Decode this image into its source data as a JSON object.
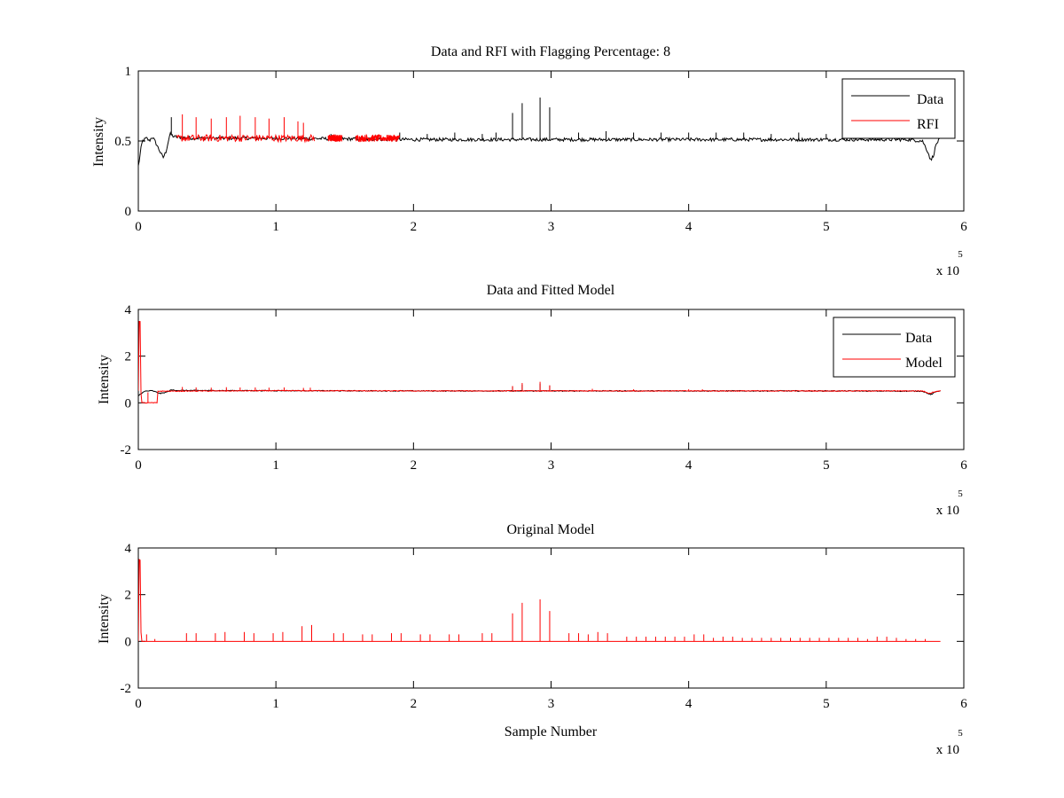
{
  "colors": {
    "data": "#000000",
    "rfi": "#ff0000",
    "background": "#ffffff",
    "axes": "#000000"
  },
  "chart_data": [
    {
      "type": "line",
      "title": "Data and RFI with Flagging Percentage: 8",
      "xlabel": "",
      "ylabel": "Intensity",
      "xlim": [
        0,
        6
      ],
      "ylim": [
        0,
        1
      ],
      "xticks": [
        "0",
        "1",
        "2",
        "3",
        "4",
        "5",
        "6"
      ],
      "yticks": [
        "0",
        "0.5",
        "1"
      ],
      "x_multiplier": {
        "base": "x 10",
        "exponent": "5"
      },
      "legend": {
        "position": "top-right",
        "entries": [
          "Data",
          "RFI"
        ]
      },
      "series": [
        {
          "name": "Data",
          "color": "#000000",
          "baseline": [
            [
              0,
              0.32
            ],
            [
              0.01,
              0.38
            ],
            [
              0.02,
              0.45
            ],
            [
              0.03,
              0.5
            ],
            [
              0.06,
              0.52
            ],
            [
              0.08,
              0.5
            ],
            [
              0.1,
              0.53
            ],
            [
              0.12,
              0.5
            ],
            [
              0.16,
              0.42
            ],
            [
              0.18,
              0.38
            ],
            [
              0.2,
              0.42
            ],
            [
              0.23,
              0.55
            ],
            [
              0.26,
              0.53
            ],
            [
              0.4,
              0.52
            ],
            [
              1.0,
              0.52
            ],
            [
              2.0,
              0.51
            ],
            [
              3.0,
              0.51
            ],
            [
              4.0,
              0.51
            ],
            [
              5.0,
              0.51
            ],
            [
              5.6,
              0.51
            ],
            [
              5.7,
              0.5
            ],
            [
              5.74,
              0.42
            ],
            [
              5.76,
              0.36
            ],
            [
              5.78,
              0.4
            ],
            [
              5.8,
              0.48
            ],
            [
              5.83,
              0.52
            ]
          ],
          "spikes": [
            [
              0.24,
              0.67
            ],
            [
              1.4,
              0.55
            ],
            [
              1.9,
              0.56
            ],
            [
              2.1,
              0.55
            ],
            [
              2.3,
              0.56
            ],
            [
              2.5,
              0.55
            ],
            [
              2.6,
              0.56
            ],
            [
              2.72,
              0.7
            ],
            [
              2.79,
              0.77
            ],
            [
              2.92,
              0.81
            ],
            [
              2.99,
              0.74
            ],
            [
              3.2,
              0.56
            ],
            [
              3.4,
              0.57
            ],
            [
              3.6,
              0.56
            ],
            [
              3.8,
              0.56
            ],
            [
              4.0,
              0.56
            ],
            [
              4.2,
              0.56
            ],
            [
              4.4,
              0.56
            ],
            [
              4.6,
              0.55
            ],
            [
              4.8,
              0.56
            ],
            [
              5.0,
              0.55
            ],
            [
              5.2,
              0.55
            ],
            [
              5.4,
              0.55
            ]
          ]
        },
        {
          "name": "RFI",
          "color": "#ff0000",
          "regions": [
            [
              0.28,
              1.28
            ],
            [
              1.38,
              1.48
            ],
            [
              1.58,
              1.9
            ]
          ],
          "spikes": [
            [
              0.32,
              0.69
            ],
            [
              0.42,
              0.67
            ],
            [
              0.53,
              0.66
            ],
            [
              0.64,
              0.67
            ],
            [
              0.74,
              0.68
            ],
            [
              0.85,
              0.67
            ],
            [
              0.95,
              0.66
            ],
            [
              1.06,
              0.67
            ],
            [
              1.16,
              0.64
            ],
            [
              1.2,
              0.63
            ]
          ]
        }
      ]
    },
    {
      "type": "line",
      "title": "Data and Fitted Model",
      "xlabel": "",
      "ylabel": "Intensity",
      "xlim": [
        0,
        6
      ],
      "ylim": [
        -2,
        4
      ],
      "xticks": [
        "0",
        "1",
        "2",
        "3",
        "4",
        "5",
        "6"
      ],
      "yticks": [
        "-2",
        "0",
        "2",
        "4"
      ],
      "x_multiplier": {
        "base": "x 10",
        "exponent": "5"
      },
      "legend": {
        "position": "top-right",
        "entries": [
          "Data",
          "Model"
        ]
      },
      "series": [
        {
          "name": "Data",
          "color": "#000000",
          "baseline": [
            [
              0,
              0.3
            ],
            [
              0.02,
              0.4
            ],
            [
              0.05,
              0.5
            ],
            [
              0.1,
              0.52
            ],
            [
              0.16,
              0.4
            ],
            [
              0.2,
              0.45
            ],
            [
              0.24,
              0.55
            ],
            [
              0.3,
              0.53
            ],
            [
              1.0,
              0.52
            ],
            [
              2.0,
              0.51
            ],
            [
              3.0,
              0.51
            ],
            [
              4.0,
              0.51
            ],
            [
              5.0,
              0.51
            ],
            [
              5.7,
              0.5
            ],
            [
              5.76,
              0.35
            ],
            [
              5.8,
              0.48
            ],
            [
              5.83,
              0.52
            ]
          ],
          "spikes": [
            [
              2.72,
              0.7
            ],
            [
              2.79,
              0.78
            ],
            [
              2.92,
              0.82
            ],
            [
              2.99,
              0.74
            ]
          ]
        },
        {
          "name": "Model",
          "color": "#ff0000",
          "baseline": [
            [
              0,
              0.5
            ],
            [
              0.005,
              3.5
            ],
            [
              0.015,
              3.5
            ],
            [
              0.02,
              0.0
            ],
            [
              0.14,
              0.0
            ],
            [
              0.14,
              0.5
            ],
            [
              0.2,
              0.5
            ],
            [
              1.0,
              0.52
            ],
            [
              2.0,
              0.51
            ],
            [
              3.0,
              0.51
            ],
            [
              4.0,
              0.51
            ],
            [
              5.0,
              0.51
            ],
            [
              5.7,
              0.51
            ],
            [
              5.75,
              0.4
            ],
            [
              5.8,
              0.5
            ],
            [
              5.83,
              0.52
            ]
          ],
          "spikes": [
            [
              0.07,
              0.45
            ],
            [
              0.32,
              0.68
            ],
            [
              0.42,
              0.66
            ],
            [
              0.53,
              0.65
            ],
            [
              0.64,
              0.67
            ],
            [
              0.74,
              0.66
            ],
            [
              0.85,
              0.66
            ],
            [
              0.95,
              0.65
            ],
            [
              1.06,
              0.66
            ],
            [
              1.2,
              0.64
            ],
            [
              1.25,
              0.65
            ],
            [
              2.72,
              0.72
            ],
            [
              2.79,
              0.85
            ],
            [
              2.92,
              0.9
            ],
            [
              2.99,
              0.75
            ],
            [
              3.3,
              0.6
            ],
            [
              3.6,
              0.58
            ],
            [
              4.0,
              0.58
            ],
            [
              4.1,
              0.58
            ]
          ]
        }
      ]
    },
    {
      "type": "line",
      "title": "Original Model",
      "xlabel": "Sample Number",
      "ylabel": "Intensity",
      "xlim": [
        0,
        6
      ],
      "ylim": [
        -2,
        4
      ],
      "xticks": [
        "0",
        "1",
        "2",
        "3",
        "4",
        "5",
        "6"
      ],
      "yticks": [
        "-2",
        "0",
        "2",
        "4"
      ],
      "x_multiplier": {
        "base": "x 10",
        "exponent": "5"
      },
      "series": [
        {
          "name": "Model",
          "color": "#ff0000",
          "baseline": [
            [
              0,
              0.0
            ],
            [
              0.005,
              3.5
            ],
            [
              0.015,
              3.5
            ],
            [
              0.02,
              0.0
            ],
            [
              5.83,
              0.0
            ]
          ],
          "spikes": [
            [
              0.06,
              0.3
            ],
            [
              0.12,
              0.1
            ],
            [
              0.35,
              0.35
            ],
            [
              0.42,
              0.35
            ],
            [
              0.56,
              0.35
            ],
            [
              0.63,
              0.4
            ],
            [
              0.77,
              0.4
            ],
            [
              0.84,
              0.35
            ],
            [
              0.98,
              0.35
            ],
            [
              1.05,
              0.4
            ],
            [
              1.19,
              0.65
            ],
            [
              1.26,
              0.7
            ],
            [
              1.42,
              0.35
            ],
            [
              1.49,
              0.35
            ],
            [
              1.63,
              0.3
            ],
            [
              1.7,
              0.3
            ],
            [
              1.84,
              0.35
            ],
            [
              1.91,
              0.35
            ],
            [
              2.05,
              0.3
            ],
            [
              2.12,
              0.3
            ],
            [
              2.26,
              0.3
            ],
            [
              2.33,
              0.3
            ],
            [
              2.5,
              0.35
            ],
            [
              2.57,
              0.35
            ],
            [
              2.72,
              1.2
            ],
            [
              2.79,
              1.65
            ],
            [
              2.92,
              1.8
            ],
            [
              2.99,
              1.3
            ],
            [
              3.13,
              0.35
            ],
            [
              3.2,
              0.35
            ],
            [
              3.27,
              0.3
            ],
            [
              3.34,
              0.4
            ],
            [
              3.41,
              0.35
            ],
            [
              3.55,
              0.2
            ],
            [
              3.62,
              0.2
            ],
            [
              3.69,
              0.2
            ],
            [
              3.76,
              0.2
            ],
            [
              3.83,
              0.2
            ],
            [
              3.9,
              0.2
            ],
            [
              3.97,
              0.2
            ],
            [
              4.04,
              0.3
            ],
            [
              4.11,
              0.3
            ],
            [
              4.18,
              0.15
            ],
            [
              4.25,
              0.2
            ],
            [
              4.32,
              0.2
            ],
            [
              4.39,
              0.15
            ],
            [
              4.46,
              0.15
            ],
            [
              4.53,
              0.15
            ],
            [
              4.6,
              0.15
            ],
            [
              4.67,
              0.15
            ],
            [
              4.74,
              0.15
            ],
            [
              4.81,
              0.15
            ],
            [
              4.88,
              0.15
            ],
            [
              4.95,
              0.15
            ],
            [
              5.02,
              0.15
            ],
            [
              5.09,
              0.15
            ],
            [
              5.16,
              0.15
            ],
            [
              5.23,
              0.15
            ],
            [
              5.3,
              0.1
            ],
            [
              5.37,
              0.2
            ],
            [
              5.44,
              0.2
            ],
            [
              5.51,
              0.15
            ],
            [
              5.58,
              0.1
            ],
            [
              5.65,
              0.1
            ],
            [
              5.72,
              0.1
            ]
          ]
        }
      ]
    }
  ]
}
